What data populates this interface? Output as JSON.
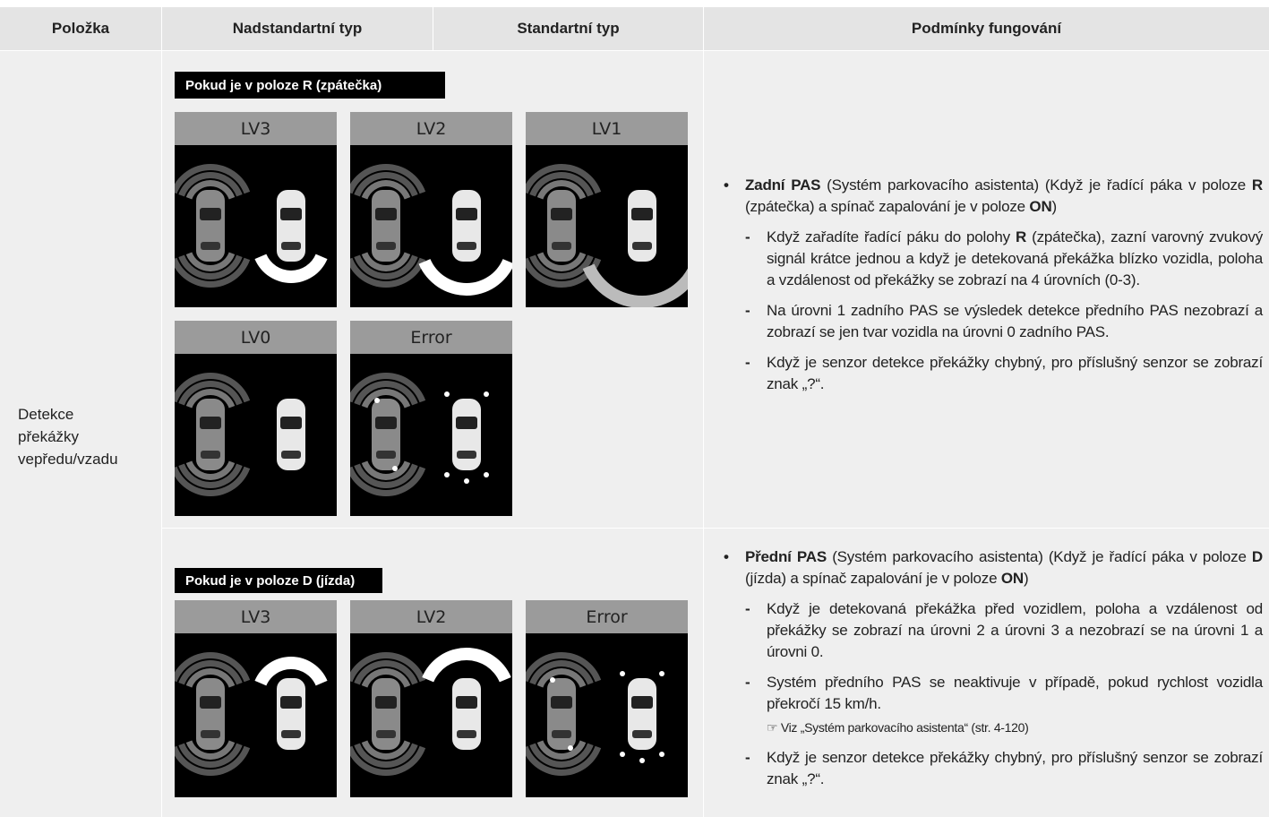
{
  "header": {
    "columns": [
      "Položka",
      "Nadstandartní typ",
      "Standartní typ",
      "Podmínky fungování"
    ]
  },
  "row": {
    "item": "Detekce překážky vepředu/vzadu",
    "sections": [
      {
        "mode_label": "Pokud je v poloze R (zpátečka)",
        "panels": [
          "LV3",
          "LV2",
          "LV1",
          "LV0",
          "Error"
        ],
        "conditions": {
          "heading": [
            {
              "text": "Zadní PAS",
              "bold": true
            },
            {
              "text": " (Systém parkovacího asistenta) (Když je řadící páka v poloze "
            },
            {
              "text": "R",
              "bold": true
            },
            {
              "text": " (zpátečka) a spínač zapalování je v poloze "
            },
            {
              "text": "ON",
              "bold": true
            },
            {
              "text": ")"
            }
          ],
          "items": [
            {
              "runs": [
                {
                  "text": "Když zařadíte řadící páku do polohy "
                },
                {
                  "text": "R",
                  "bold": true
                },
                {
                  "text": " (zpátečka), zazní varovný zvukový signál krátce jednou a když je detekovaná překážka blízko vozidla, poloha a vzdálenost od překážky se zobrazí na 4 úrovních (0-3)."
                }
              ]
            },
            {
              "runs": [
                {
                  "text": "Na úrovni 1 zadního PAS se výsledek detekce předního PAS nezobrazí a zobrazí se jen tvar vozidla na úrovni 0 zadního PAS."
                }
              ]
            },
            {
              "runs": [
                {
                  "text": "Když je senzor detekce překážky chybný, pro příslušný senzor se zobrazí znak „?“."
                }
              ]
            }
          ]
        }
      },
      {
        "mode_label": "Pokud je v poloze D (jízda)",
        "panels": [
          "LV3",
          "LV2",
          "Error"
        ],
        "conditions": {
          "heading": [
            {
              "text": "Přední PAS",
              "bold": true
            },
            {
              "text": " (Systém parkovacího asistenta) (Když je řadící páka v poloze "
            },
            {
              "text": "D",
              "bold": true
            },
            {
              "text": " (jízda) a spínač zapalování je v poloze "
            },
            {
              "text": "ON",
              "bold": true
            },
            {
              "text": ")"
            }
          ],
          "items": [
            {
              "runs": [
                {
                  "text": "Když je detekovaná překážka před vozidlem, poloha a vzdálenost od překážky se zobrazí na úrovni 2 a úrovni 3 a nezobrazí se na úrovni 1 a úrovni 0."
                }
              ]
            },
            {
              "runs": [
                {
                  "text": "Systém předního PAS se neaktivuje v případě, pokud rychlost vozidla překročí 15 km/h."
                }
              ],
              "note": "☞ Viz „Systém parkovacího asistenta“ (str. 4-120)"
            },
            {
              "runs": [
                {
                  "text": "Když je senzor detekce překážky chybný, pro příslušný senzor se zobrazí znak „?“."
                }
              ]
            }
          ]
        }
      }
    ]
  }
}
